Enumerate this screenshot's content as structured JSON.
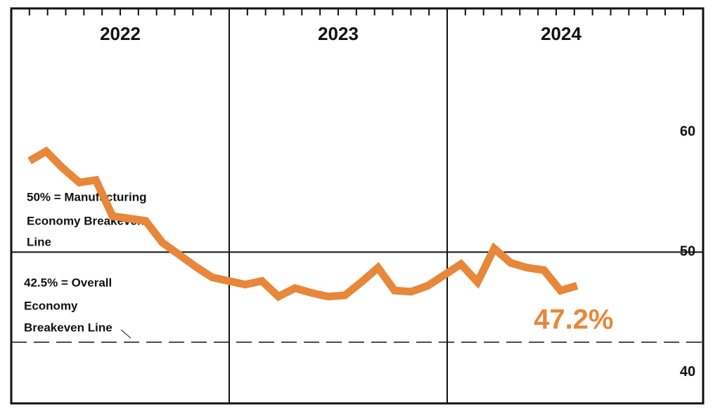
{
  "chart_data": {
    "type": "line",
    "sections": [
      "2022",
      "2023",
      "2024"
    ],
    "categories": [
      null,
      null,
      null,
      null,
      null,
      null,
      null,
      null,
      null,
      null,
      null,
      null,
      null,
      null,
      null,
      null,
      null,
      null,
      null,
      null,
      null,
      null,
      null,
      null,
      null,
      null,
      null,
      null,
      null,
      null,
      null,
      null,
      null,
      null
    ],
    "series": [
      {
        "name": null,
        "color": "#e8873a",
        "values": [
          57.6,
          58.4,
          57.0,
          55.8,
          56.0,
          53.0,
          52.8,
          52.6,
          50.8,
          49.8,
          48.8,
          47.9,
          47.6,
          47.3,
          47.6,
          46.3,
          47.0,
          46.6,
          46.3,
          46.4,
          47.5,
          48.7,
          46.8,
          46.7,
          47.2,
          48.1,
          49.0,
          47.5,
          50.3,
          49.1,
          48.7,
          48.5,
          46.8,
          47.2
        ],
        "value_labels": [
          null,
          null,
          null,
          null,
          null,
          null,
          null,
          null,
          null,
          null,
          null,
          null,
          null,
          null,
          null,
          null,
          null,
          null,
          null,
          null,
          null,
          null,
          null,
          null,
          null,
          null,
          null,
          null,
          null,
          null,
          null,
          null,
          null,
          "47.2%"
        ]
      }
    ],
    "ylim": [
      37.4,
      70.3
    ],
    "yticks": [
      40,
      50,
      60
    ],
    "reference_lines": [
      {
        "value": 50,
        "style": "solid",
        "label": [
          "50% = Manufacturing",
          "Economy Breakeven",
          "Line"
        ]
      },
      {
        "value": 42.5,
        "style": "dashed",
        "label": [
          "42.5% = Overall",
          "Economy",
          "Breakeven Line"
        ]
      }
    ]
  }
}
